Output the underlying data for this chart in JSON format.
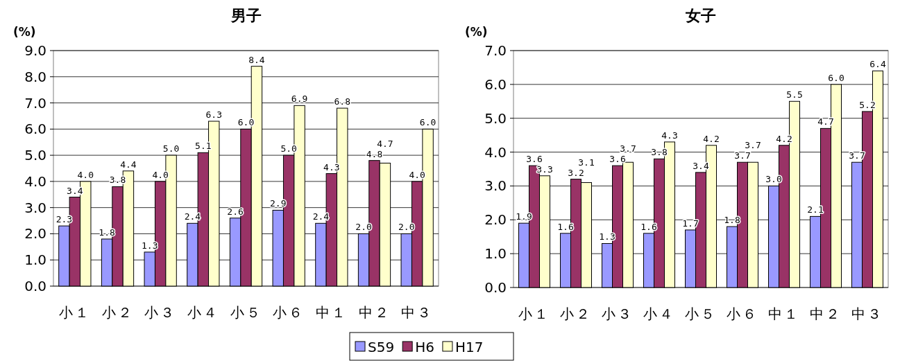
{
  "chart_data": [
    {
      "type": "bar",
      "title": "男子",
      "ylabel": "(%)",
      "categories": [
        "小１",
        "小２",
        "小３",
        "小４",
        "小５",
        "小６",
        "中１",
        "中２",
        "中３"
      ],
      "ylim": [
        0,
        9
      ],
      "yticks": [
        {
          "value": 0,
          "label": "0.0"
        },
        {
          "value": 1,
          "label": "1.0"
        },
        {
          "value": 2,
          "label": "2.0"
        },
        {
          "value": 3,
          "label": "3.0"
        },
        {
          "value": 4,
          "label": "4.0"
        },
        {
          "value": 5,
          "label": "5.0"
        },
        {
          "value": 6,
          "label": "6.0"
        },
        {
          "value": 7,
          "label": "7.0"
        },
        {
          "value": 8,
          "label": "8.0"
        },
        {
          "value": 9,
          "label": "9.0"
        }
      ],
      "grid": "y",
      "legend": "bottom",
      "series": [
        {
          "name": "S59",
          "color": "#9999ff",
          "values": [
            2.3,
            1.8,
            1.3,
            2.4,
            2.6,
            2.9,
            2.4,
            2.0,
            2.0
          ],
          "value_labels": [
            "2.3",
            "1.8",
            "1.3",
            "2.4",
            "2.6",
            "2.9",
            "2.4",
            "2.0",
            "2.0"
          ]
        },
        {
          "name": "H6",
          "color": "#993366",
          "values": [
            3.4,
            3.8,
            4.0,
            5.1,
            6.0,
            5.0,
            4.3,
            4.8,
            4.0
          ],
          "value_labels": [
            "3.4",
            "3.8",
            "4.0",
            "5.1",
            "6.0",
            "5.0",
            "4.3",
            "4.8",
            "4.0"
          ]
        },
        {
          "name": "H17",
          "color": "#ffffcc",
          "values": [
            4.0,
            4.4,
            5.0,
            6.3,
            8.4,
            6.9,
            6.8,
            4.7,
            6.0
          ],
          "value_labels": [
            "4.0",
            "4.4",
            "5.0",
            "6.3",
            "8.4",
            "6.9",
            "6.8",
            "4.7",
            "6.0"
          ]
        }
      ]
    },
    {
      "type": "bar",
      "title": "女子",
      "ylabel": "(%)",
      "categories": [
        "小１",
        "小２",
        "小３",
        "小４",
        "小５",
        "小６",
        "中１",
        "中２",
        "中３"
      ],
      "ylim": [
        0,
        7
      ],
      "yticks": [
        {
          "value": 0,
          "label": "0.0"
        },
        {
          "value": 1,
          "label": "1.0"
        },
        {
          "value": 2,
          "label": "2.0"
        },
        {
          "value": 3,
          "label": "3.0"
        },
        {
          "value": 4,
          "label": "4.0"
        },
        {
          "value": 5,
          "label": "5.0"
        },
        {
          "value": 6,
          "label": "6.0"
        },
        {
          "value": 7,
          "label": "7.0"
        }
      ],
      "grid": "y",
      "series": [
        {
          "name": "S59",
          "color": "#9999ff",
          "values": [
            1.9,
            1.6,
            1.3,
            1.6,
            1.7,
            1.8,
            3.0,
            2.1,
            3.7
          ],
          "value_labels": [
            "1.9",
            "1.6",
            "1.3",
            "1.6",
            "1.7",
            "1.8",
            "3.0",
            "2.1",
            "3.7"
          ]
        },
        {
          "name": "H6",
          "color": "#993366",
          "values": [
            3.6,
            3.2,
            3.6,
            3.8,
            3.4,
            3.7,
            4.2,
            4.7,
            5.2
          ],
          "value_labels": [
            "3.6",
            "3.2",
            "3.6",
            "3.8",
            "3.4",
            "3.7",
            "4.2",
            "4.7",
            "5.2"
          ]
        },
        {
          "name": "H17",
          "color": "#ffffcc",
          "values": [
            3.3,
            3.1,
            3.7,
            4.3,
            4.2,
            3.7,
            5.5,
            6.0,
            6.4
          ],
          "value_labels": [
            "3.3",
            "3.1",
            "3.7",
            "4.3",
            "4.2",
            "3.7",
            "5.5",
            "6.0",
            "6.4"
          ]
        }
      ]
    }
  ]
}
